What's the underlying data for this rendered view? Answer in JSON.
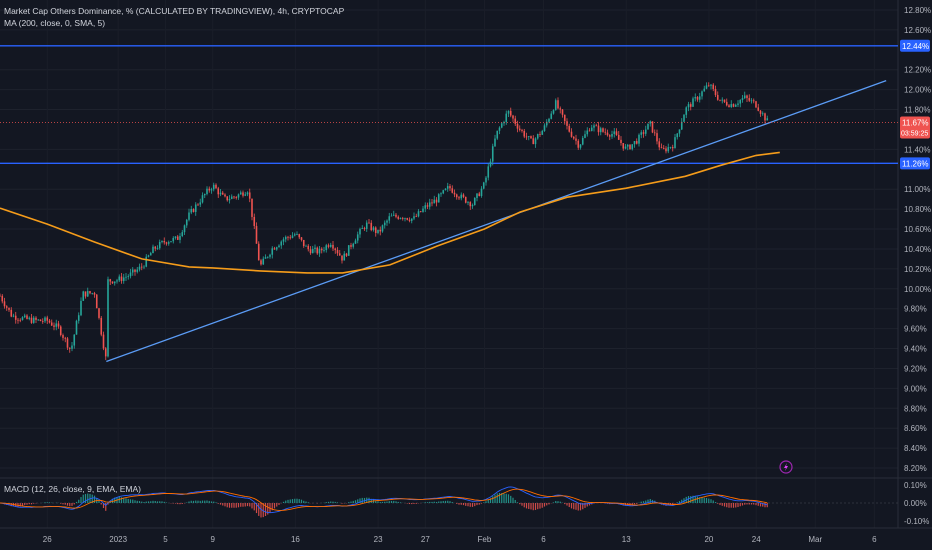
{
  "header": {
    "title": "Market Cap Others Dominance, % (CALCULATED BY TRADINGVIEW), 4h, CRYPTOCAP",
    "ma_label": "MA (200, close, 0, SMA, 5)"
  },
  "macd": {
    "label": "MACD (12, 26, close, 9, EMA, EMA)"
  },
  "price_axis": [
    "12.80%",
    "12.60%",
    "12.20%",
    "12.00%",
    "11.80%",
    "11.40%",
    "11.00%",
    "10.80%",
    "10.60%",
    "10.40%",
    "10.20%",
    "10.00%",
    "9.80%",
    "9.60%",
    "9.40%",
    "9.20%",
    "9.00%",
    "8.80%",
    "8.60%",
    "8.40%",
    "8.20%"
  ],
  "macd_axis": [
    "0.10%",
    "0.00%",
    "-0.10%"
  ],
  "tags": {
    "resistance": "12.44%",
    "current": "11.67%",
    "countdown": "03:59:25",
    "support": "11.26%"
  },
  "time_axis": [
    "26",
    "2023",
    "5",
    "9",
    "16",
    "23",
    "27",
    "Feb",
    "6",
    "13",
    "20",
    "24",
    "Mar",
    "6"
  ],
  "colors": {
    "background": "#131722",
    "up": "#26a69a",
    "down": "#ef5350",
    "ma": "#f59c1a",
    "hline": "#2962ff",
    "trendline": "#5b9cf6",
    "macd_line": "#2962ff",
    "signal_line": "#ff6d00"
  },
  "chart_data": {
    "type": "candlestick",
    "title": "Market Cap Others Dominance, % (CALCULATED BY TRADINGVIEW), 4h, CRYPTOCAP",
    "ylim": [
      8.1,
      12.9
    ],
    "y_unit": "%",
    "x_range": [
      "Dec 22 2022",
      "Mar 8 2023"
    ],
    "horizontal_lines": [
      12.44,
      11.26
    ],
    "trendline": {
      "start": [
        "2022-12-31",
        9.27
      ],
      "end": [
        "2023-03-07",
        12.09
      ]
    },
    "last_price": 11.67,
    "price_path": [
      [
        "2022-12-22",
        9.93
      ],
      [
        "2022-12-23",
        9.73
      ],
      [
        "2022-12-24",
        9.7
      ],
      [
        "2022-12-25",
        9.68
      ],
      [
        "2022-12-26",
        9.68
      ],
      [
        "2022-12-27",
        9.6
      ],
      [
        "2022-12-28",
        9.38
      ],
      [
        "2022-12-28",
        9.38
      ],
      [
        "2022-12-29",
        9.95
      ],
      [
        "2022-12-30",
        9.96
      ],
      [
        "2022-12-31",
        9.27
      ],
      [
        "2022-12-31",
        10.08
      ],
      [
        "2023-01-01",
        10.09
      ],
      [
        "2023-01-02",
        10.14
      ],
      [
        "2023-01-03",
        10.22
      ],
      [
        "2023-01-04",
        10.4
      ],
      [
        "2023-01-05",
        10.48
      ],
      [
        "2023-01-06",
        10.5
      ],
      [
        "2023-01-07",
        10.74
      ],
      [
        "2023-01-08",
        10.9
      ],
      [
        "2023-01-09",
        11.04
      ],
      [
        "2023-01-10",
        10.9
      ],
      [
        "2023-01-11",
        10.93
      ],
      [
        "2023-01-12",
        11.0
      ],
      [
        "2023-01-13",
        10.22
      ],
      [
        "2023-01-14",
        10.4
      ],
      [
        "2023-01-15",
        10.5
      ],
      [
        "2023-01-16",
        10.55
      ],
      [
        "2023-01-17",
        10.4
      ],
      [
        "2023-01-18",
        10.37
      ],
      [
        "2023-01-19",
        10.47
      ],
      [
        "2023-01-20",
        10.3
      ],
      [
        "2023-01-21",
        10.5
      ],
      [
        "2023-01-22",
        10.65
      ],
      [
        "2023-01-23",
        10.56
      ],
      [
        "2023-01-24",
        10.72
      ],
      [
        "2023-01-25",
        10.73
      ],
      [
        "2023-01-26",
        10.7
      ],
      [
        "2023-01-27",
        10.82
      ],
      [
        "2023-01-28",
        10.9
      ],
      [
        "2023-01-29",
        11.02
      ],
      [
        "2023-01-30",
        10.92
      ],
      [
        "2023-01-31",
        10.85
      ],
      [
        "2023-02-01",
        11.05
      ],
      [
        "2023-02-02",
        11.55
      ],
      [
        "2023-02-03",
        11.78
      ],
      [
        "2023-02-04",
        11.6
      ],
      [
        "2023-02-05",
        11.47
      ],
      [
        "2023-02-06",
        11.6
      ],
      [
        "2023-02-07",
        11.87
      ],
      [
        "2023-02-08",
        11.62
      ],
      [
        "2023-02-09",
        11.44
      ],
      [
        "2023-02-10",
        11.64
      ],
      [
        "2023-02-11",
        11.58
      ],
      [
        "2023-02-12",
        11.55
      ],
      [
        "2023-02-13",
        11.4
      ],
      [
        "2023-02-14",
        11.5
      ],
      [
        "2023-02-15",
        11.66
      ],
      [
        "2023-02-16",
        11.38
      ],
      [
        "2023-02-17",
        11.45
      ],
      [
        "2023-02-18",
        11.8
      ],
      [
        "2023-02-19",
        11.92
      ],
      [
        "2023-02-20",
        12.05
      ],
      [
        "2023-02-21",
        11.88
      ],
      [
        "2023-02-22",
        11.85
      ],
      [
        "2023-02-23",
        11.92
      ],
      [
        "2023-02-24",
        11.85
      ],
      [
        "2023-02-25",
        11.67
      ]
    ],
    "ma_path": [
      [
        "2022-12-22",
        10.81
      ],
      [
        "2022-12-26",
        10.65
      ],
      [
        "2022-12-30",
        10.47
      ],
      [
        "2023-01-03",
        10.3
      ],
      [
        "2023-01-07",
        10.22
      ],
      [
        "2023-01-09",
        10.21
      ],
      [
        "2023-01-13",
        10.18
      ],
      [
        "2023-01-17",
        10.16
      ],
      [
        "2023-01-20",
        10.16
      ],
      [
        "2023-01-24",
        10.24
      ],
      [
        "2023-01-28",
        10.43
      ],
      [
        "2023-02-01",
        10.6
      ],
      [
        "2023-02-04",
        10.77
      ],
      [
        "2023-02-08",
        10.92
      ],
      [
        "2023-02-13",
        11.01
      ],
      [
        "2023-02-18",
        11.13
      ],
      [
        "2023-02-21",
        11.24
      ],
      [
        "2023-02-24",
        11.34
      ],
      [
        "2023-02-26",
        11.37
      ]
    ]
  }
}
